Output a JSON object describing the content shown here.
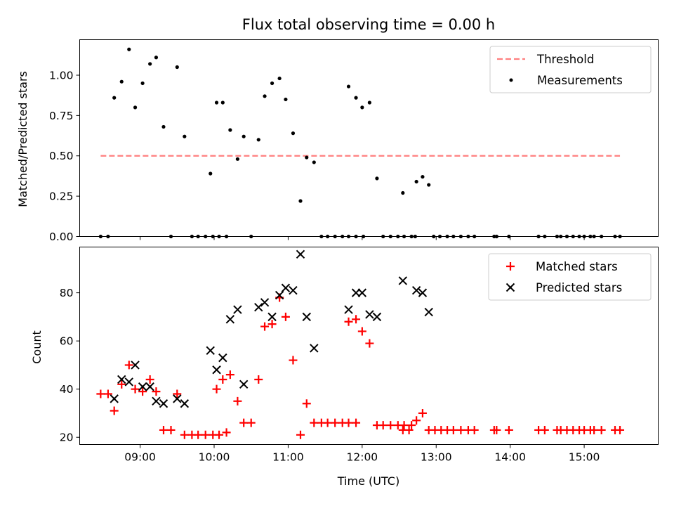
{
  "chart_data": [
    {
      "type": "scatter",
      "title": "Flux total observing time = 0.00 h",
      "xlabel": "",
      "ylabel": "Matched/Predicted stars",
      "xlim": [
        "08:11",
        "16:00"
      ],
      "ylim": [
        0,
        1.22
      ],
      "yticks": [
        0.0,
        0.25,
        0.5,
        0.75,
        1.0
      ],
      "ytick_labels": [
        "0.00",
        "0.25",
        "0.50",
        "0.75",
        "1.00"
      ],
      "grid": false,
      "legend_position": "top-right",
      "threshold": {
        "name": "Threshold",
        "value": 0.5,
        "x_range": [
          "08:28",
          "15:29"
        ],
        "color": "#ff7f7f",
        "style": "dashed"
      },
      "series": [
        {
          "name": "Measurements",
          "color": "#000000",
          "marker": "dot",
          "points": [
            [
              "08:28",
              0.0
            ],
            [
              "08:34",
              0.0
            ],
            [
              "08:39",
              0.86
            ],
            [
              "08:45",
              0.96
            ],
            [
              "08:51",
              1.16
            ],
            [
              "08:56",
              0.8
            ],
            [
              "09:02",
              0.95
            ],
            [
              "09:08",
              1.07
            ],
            [
              "09:13",
              1.11
            ],
            [
              "09:19",
              0.68
            ],
            [
              "09:25",
              0.0
            ],
            [
              "09:30",
              1.05
            ],
            [
              "09:36",
              0.62
            ],
            [
              "09:42",
              0.0
            ],
            [
              "09:47",
              0.0
            ],
            [
              "09:53",
              0.0
            ],
            [
              "09:59",
              0.0
            ],
            [
              "10:04",
              0.0
            ],
            [
              "10:10",
              0.0
            ],
            [
              "09:57",
              0.39
            ],
            [
              "10:02",
              0.83
            ],
            [
              "10:07",
              0.83
            ],
            [
              "10:13",
              0.66
            ],
            [
              "10:19",
              0.48
            ],
            [
              "10:24",
              0.62
            ],
            [
              "10:30",
              0.0
            ],
            [
              "10:36",
              0.6
            ],
            [
              "10:41",
              0.87
            ],
            [
              "10:47",
              0.95
            ],
            [
              "10:53",
              0.98
            ],
            [
              "10:58",
              0.85
            ],
            [
              "11:04",
              0.64
            ],
            [
              "11:10",
              0.22
            ],
            [
              "11:15",
              0.49
            ],
            [
              "11:21",
              0.46
            ],
            [
              "11:27",
              0.0
            ],
            [
              "11:32",
              0.0
            ],
            [
              "11:38",
              0.0
            ],
            [
              "11:44",
              0.0
            ],
            [
              "11:49",
              0.0
            ],
            [
              "11:55",
              0.0
            ],
            [
              "12:01",
              0.0
            ],
            [
              "11:49",
              0.93
            ],
            [
              "11:55",
              0.86
            ],
            [
              "12:00",
              0.8
            ],
            [
              "12:06",
              0.83
            ],
            [
              "12:12",
              0.36
            ],
            [
              "12:17",
              0.0
            ],
            [
              "12:23",
              0.0
            ],
            [
              "12:29",
              0.0
            ],
            [
              "12:34",
              0.0
            ],
            [
              "12:40",
              0.0
            ],
            [
              "12:33",
              0.27
            ],
            [
              "12:43",
              0.0
            ],
            [
              "12:44",
              0.34
            ],
            [
              "12:49",
              0.37
            ],
            [
              "12:54",
              0.32
            ],
            [
              "12:58",
              0.0
            ],
            [
              "13:03",
              0.0
            ],
            [
              "13:09",
              0.0
            ],
            [
              "13:14",
              0.0
            ],
            [
              "13:20",
              0.0
            ],
            [
              "13:26",
              0.0
            ],
            [
              "13:31",
              0.0
            ],
            [
              "13:47",
              0.0
            ],
            [
              "13:49",
              0.0
            ],
            [
              "13:59",
              0.0
            ],
            [
              "14:23",
              0.0
            ],
            [
              "14:28",
              0.0
            ],
            [
              "14:38",
              0.0
            ],
            [
              "14:41",
              0.0
            ],
            [
              "14:46",
              0.0
            ],
            [
              "14:51",
              0.0
            ],
            [
              "14:56",
              0.0
            ],
            [
              "15:00",
              0.0
            ],
            [
              "15:05",
              0.0
            ],
            [
              "15:08",
              0.0
            ],
            [
              "15:14",
              0.0
            ],
            [
              "15:25",
              0.0
            ],
            [
              "15:29",
              0.0
            ]
          ]
        }
      ]
    },
    {
      "type": "scatter",
      "title": "",
      "xlabel": "Time (UTC)",
      "ylabel": "Count",
      "xlim": [
        "08:11",
        "16:00"
      ],
      "ylim": [
        17,
        99
      ],
      "yticks": [
        20,
        40,
        60,
        80
      ],
      "ytick_labels": [
        "20",
        "40",
        "60",
        "80"
      ],
      "xticks": [
        "09:00",
        "10:00",
        "11:00",
        "12:00",
        "13:00",
        "14:00",
        "15:00"
      ],
      "grid": false,
      "legend_position": "top-right",
      "series": [
        {
          "name": "Matched stars",
          "color": "#ff0000",
          "marker": "plus",
          "points": [
            [
              "08:28",
              38
            ],
            [
              "08:34",
              38
            ],
            [
              "08:39",
              31
            ],
            [
              "08:45",
              42
            ],
            [
              "08:51",
              50
            ],
            [
              "08:56",
              40
            ],
            [
              "09:02",
              39
            ],
            [
              "09:08",
              44
            ],
            [
              "09:13",
              39
            ],
            [
              "09:19",
              23
            ],
            [
              "09:25",
              23
            ],
            [
              "09:30",
              38
            ],
            [
              "09:36",
              21
            ],
            [
              "09:42",
              21
            ],
            [
              "09:47",
              21
            ],
            [
              "09:53",
              21
            ],
            [
              "09:59",
              21
            ],
            [
              "10:04",
              21
            ],
            [
              "10:10",
              22
            ],
            [
              "10:02",
              40
            ],
            [
              "10:07",
              44
            ],
            [
              "10:13",
              46
            ],
            [
              "10:19",
              35
            ],
            [
              "10:24",
              26
            ],
            [
              "10:30",
              26
            ],
            [
              "10:36",
              44
            ],
            [
              "10:41",
              66
            ],
            [
              "10:47",
              67
            ],
            [
              "10:53",
              78
            ],
            [
              "10:58",
              70
            ],
            [
              "11:04",
              52
            ],
            [
              "11:10",
              21
            ],
            [
              "11:15",
              34
            ],
            [
              "11:21",
              26
            ],
            [
              "11:27",
              26
            ],
            [
              "11:32",
              26
            ],
            [
              "11:38",
              26
            ],
            [
              "11:44",
              26
            ],
            [
              "11:49",
              26
            ],
            [
              "11:55",
              26
            ],
            [
              "11:49",
              68
            ],
            [
              "11:55",
              69
            ],
            [
              "12:00",
              64
            ],
            [
              "12:06",
              59
            ],
            [
              "12:12",
              25
            ],
            [
              "12:17",
              25
            ],
            [
              "12:23",
              25
            ],
            [
              "12:29",
              25
            ],
            [
              "12:34",
              25
            ],
            [
              "12:40",
              25
            ],
            [
              "12:33",
              23
            ],
            [
              "12:38",
              23
            ],
            [
              "12:44",
              27
            ],
            [
              "12:49",
              30
            ],
            [
              "12:54",
              23
            ],
            [
              "12:59",
              23
            ],
            [
              "13:04",
              23
            ],
            [
              "13:09",
              23
            ],
            [
              "13:14",
              23
            ],
            [
              "13:20",
              23
            ],
            [
              "13:26",
              23
            ],
            [
              "13:31",
              23
            ],
            [
              "13:47",
              23
            ],
            [
              "13:49",
              23
            ],
            [
              "13:59",
              23
            ],
            [
              "14:23",
              23
            ],
            [
              "14:28",
              23
            ],
            [
              "14:38",
              23
            ],
            [
              "14:41",
              23
            ],
            [
              "14:46",
              23
            ],
            [
              "14:51",
              23
            ],
            [
              "14:56",
              23
            ],
            [
              "15:00",
              23
            ],
            [
              "15:05",
              23
            ],
            [
              "15:08",
              23
            ],
            [
              "15:14",
              23
            ],
            [
              "15:25",
              23
            ],
            [
              "15:29",
              23
            ]
          ]
        },
        {
          "name": "Predicted stars",
          "color": "#000000",
          "marker": "x",
          "points": [
            [
              "08:39",
              36
            ],
            [
              "08:45",
              44
            ],
            [
              "08:51",
              43
            ],
            [
              "08:56",
              50
            ],
            [
              "09:02",
              41
            ],
            [
              "09:08",
              41
            ],
            [
              "09:13",
              35
            ],
            [
              "09:19",
              34
            ],
            [
              "09:30",
              36
            ],
            [
              "09:36",
              34
            ],
            [
              "09:57",
              56
            ],
            [
              "10:02",
              48
            ],
            [
              "10:07",
              53
            ],
            [
              "10:13",
              69
            ],
            [
              "10:19",
              73
            ],
            [
              "10:24",
              42
            ],
            [
              "10:36",
              74
            ],
            [
              "10:41",
              76
            ],
            [
              "10:47",
              70
            ],
            [
              "10:53",
              79
            ],
            [
              "10:58",
              82
            ],
            [
              "11:04",
              81
            ],
            [
              "11:10",
              96
            ],
            [
              "11:15",
              70
            ],
            [
              "11:21",
              57
            ],
            [
              "11:49",
              73
            ],
            [
              "11:55",
              80
            ],
            [
              "12:00",
              80
            ],
            [
              "12:06",
              71
            ],
            [
              "12:12",
              70
            ],
            [
              "12:33",
              85
            ],
            [
              "12:44",
              81
            ],
            [
              "12:49",
              80
            ],
            [
              "12:54",
              72
            ]
          ]
        }
      ]
    }
  ]
}
